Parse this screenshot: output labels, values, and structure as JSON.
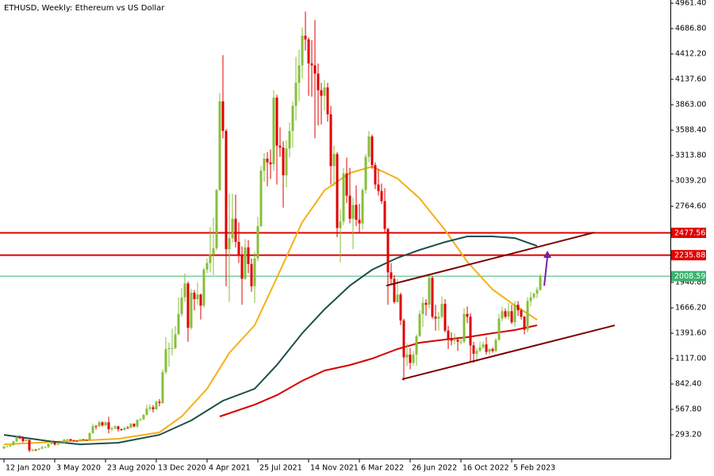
{
  "chart_data": {
    "type": "candlestick",
    "title": "ETHUSD, Weekly:  Ethereum vs US Dollar",
    "up_color": "#86bf3a",
    "down_color": "#e00000",
    "categories": [
      "12 Jan 2020",
      null,
      null,
      null,
      null,
      null,
      null,
      null,
      null,
      null,
      null,
      null,
      null,
      null,
      null,
      null,
      "3 May 2020",
      null,
      null,
      null,
      null,
      null,
      null,
      null,
      null,
      null,
      null,
      null,
      null,
      null,
      null,
      null,
      "23 Aug 2020",
      null,
      null,
      null,
      null,
      null,
      null,
      null,
      null,
      null,
      null,
      null,
      null,
      null,
      null,
      null,
      "13 Dec 2020",
      null,
      null,
      null,
      null,
      null,
      null,
      null,
      null,
      null,
      null,
      null,
      null,
      null,
      null,
      null,
      "4 Apr 2021",
      null,
      null,
      null,
      null,
      null,
      null,
      null,
      null,
      null,
      null,
      null,
      null,
      null,
      null,
      null,
      "25 Jul 2021",
      null,
      null,
      null,
      null,
      null,
      null,
      null,
      null,
      null,
      null,
      null,
      null,
      null,
      null,
      null,
      "14 Nov 2021",
      null,
      null,
      null,
      null,
      null,
      null,
      null,
      null,
      null,
      null,
      null,
      null,
      null,
      null,
      null,
      "6 Mar 2022",
      null,
      null,
      null,
      null,
      null,
      null,
      null,
      null,
      null,
      null,
      null,
      null,
      null,
      null,
      null,
      "26 Jun 2022",
      null,
      null,
      null,
      null,
      null,
      null,
      null,
      null,
      null,
      null,
      null,
      null,
      null,
      null,
      null,
      "16 Oct 2022",
      null,
      null,
      null,
      null,
      null,
      null,
      null,
      null,
      null,
      null,
      null,
      null,
      null,
      null,
      null,
      "5 Feb 2023",
      null,
      null,
      null,
      null,
      null,
      null,
      null,
      null,
      null
    ],
    "candles": [
      [
        145,
        175,
        140,
        165
      ],
      [
        165,
        178,
        160,
        168
      ],
      [
        168,
        190,
        162,
        180
      ],
      [
        180,
        230,
        175,
        223
      ],
      [
        223,
        275,
        215,
        265
      ],
      [
        265,
        288,
        245,
        260
      ],
      [
        260,
        275,
        210,
        225
      ],
      [
        225,
        252,
        220,
        238
      ],
      [
        238,
        240,
        105,
        125
      ],
      [
        125,
        142,
        108,
        132
      ],
      [
        132,
        140,
        118,
        131
      ],
      [
        131,
        150,
        125,
        143
      ],
      [
        143,
        175,
        140,
        158
      ],
      [
        158,
        172,
        150,
        158
      ],
      [
        158,
        197,
        152,
        194
      ],
      [
        194,
        228,
        185,
        214
      ],
      [
        214,
        215,
        175,
        188
      ],
      [
        188,
        213,
        180,
        200
      ],
      [
        200,
        218,
        195,
        207
      ],
      [
        207,
        248,
        200,
        243
      ],
      [
        243,
        252,
        225,
        245
      ],
      [
        245,
        250,
        225,
        232
      ],
      [
        232,
        240,
        220,
        228
      ],
      [
        228,
        232,
        215,
        226
      ],
      [
        226,
        246,
        222,
        243
      ],
      [
        243,
        248,
        235,
        241
      ],
      [
        241,
        242,
        228,
        232
      ],
      [
        232,
        320,
        230,
        311
      ],
      [
        311,
        415,
        305,
        386
      ],
      [
        386,
        400,
        350,
        385
      ],
      [
        385,
        445,
        375,
        428
      ],
      [
        428,
        438,
        380,
        395
      ],
      [
        395,
        440,
        385,
        428
      ],
      [
        428,
        488,
        310,
        353
      ],
      [
        353,
        380,
        330,
        364
      ],
      [
        364,
        395,
        350,
        384
      ],
      [
        384,
        390,
        330,
        353
      ],
      [
        353,
        362,
        335,
        346
      ],
      [
        346,
        375,
        335,
        370
      ],
      [
        370,
        390,
        360,
        368
      ],
      [
        368,
        420,
        365,
        413
      ],
      [
        413,
        415,
        375,
        383
      ],
      [
        383,
        460,
        370,
        454
      ],
      [
        454,
        475,
        440,
        460
      ],
      [
        460,
        515,
        455,
        509
      ],
      [
        509,
        620,
        500,
        575
      ],
      [
        575,
        625,
        550,
        590
      ],
      [
        590,
        615,
        535,
        570
      ],
      [
        570,
        665,
        560,
        650
      ],
      [
        650,
        680,
        600,
        637
      ],
      [
        637,
        1000,
        625,
        970
      ],
      [
        970,
        1350,
        950,
        1220
      ],
      [
        1220,
        1290,
        1030,
        1230
      ],
      [
        1230,
        1440,
        1150,
        1230
      ],
      [
        1230,
        1470,
        1220,
        1380
      ],
      [
        1380,
        1780,
        1370,
        1600
      ],
      [
        1600,
        1880,
        1570,
        1780
      ],
      [
        1780,
        2040,
        1730,
        1930
      ],
      [
        1930,
        1950,
        1300,
        1450
      ],
      [
        1450,
        1870,
        1430,
        1830
      ],
      [
        1830,
        1860,
        1640,
        1760
      ],
      [
        1760,
        1940,
        1700,
        1810
      ],
      [
        1810,
        1820,
        1540,
        1690
      ],
      [
        1690,
        2100,
        1670,
        2080
      ],
      [
        2080,
        2200,
        2040,
        2150
      ],
      [
        2150,
        2540,
        2050,
        2240
      ],
      [
        2240,
        2640,
        2020,
        2310
      ],
      [
        2310,
        2950,
        2290,
        2940
      ],
      [
        2940,
        3990,
        2930,
        3900
      ],
      [
        3900,
        4400,
        3500,
        3580
      ],
      [
        3580,
        3600,
        1900,
        2300
      ],
      [
        2300,
        2900,
        1730,
        2420
      ],
      [
        2420,
        2900,
        2370,
        2630
      ],
      [
        2630,
        2890,
        2320,
        2380
      ],
      [
        2380,
        2590,
        2150,
        2230
      ],
      [
        2230,
        2330,
        1700,
        1980
      ],
      [
        1980,
        2410,
        1970,
        2320
      ],
      [
        2320,
        2400,
        2040,
        2140
      ],
      [
        2140,
        2200,
        1840,
        1900
      ],
      [
        1900,
        2270,
        1720,
        2200
      ],
      [
        2200,
        2650,
        2170,
        2550
      ],
      [
        2550,
        3200,
        2540,
        3150
      ],
      [
        3150,
        3340,
        3030,
        3280
      ],
      [
        3280,
        3350,
        2980,
        3240
      ],
      [
        3240,
        3380,
        3060,
        3220
      ],
      [
        3220,
        4020,
        3150,
        3940
      ],
      [
        3940,
        3970,
        3000,
        3420
      ],
      [
        3420,
        3620,
        3300,
        3400
      ],
      [
        3400,
        3470,
        2750,
        3100
      ],
      [
        3100,
        3480,
        2970,
        3390
      ],
      [
        3390,
        3670,
        3290,
        3580
      ],
      [
        3580,
        3900,
        3400,
        3850
      ],
      [
        3850,
        4380,
        3690,
        4100
      ],
      [
        4100,
        4460,
        3900,
        4290
      ],
      [
        4290,
        4700,
        4150,
        4610
      ],
      [
        4610,
        4870,
        4450,
        4570
      ],
      [
        4570,
        4590,
        3960,
        4310
      ],
      [
        4310,
        4560,
        3950,
        4290
      ],
      [
        4290,
        4780,
        3500,
        4200
      ],
      [
        4200,
        4310,
        3640,
        4020
      ],
      [
        4020,
        4100,
        3650,
        3960
      ],
      [
        3960,
        4130,
        3800,
        4050
      ],
      [
        4050,
        4100,
        3680,
        3760
      ],
      [
        3760,
        3850,
        3000,
        3200
      ],
      [
        3200,
        3420,
        2980,
        3330
      ],
      [
        3330,
        3350,
        2430,
        2530
      ],
      [
        2530,
        2730,
        2160,
        2600
      ],
      [
        2600,
        3180,
        2560,
        3120
      ],
      [
        3120,
        3290,
        2800,
        2880
      ],
      [
        2880,
        3180,
        2580,
        2630
      ],
      [
        2630,
        2860,
        2300,
        2780
      ],
      [
        2780,
        2990,
        2550,
        2620
      ],
      [
        2620,
        2790,
        2480,
        2580
      ],
      [
        2580,
        2960,
        2510,
        2940
      ],
      [
        2940,
        3330,
        2900,
        3300
      ],
      [
        3300,
        3580,
        3240,
        3520
      ],
      [
        3520,
        3540,
        3170,
        3210
      ],
      [
        3210,
        3240,
        2950,
        3000
      ],
      [
        3000,
        3170,
        2880,
        2930
      ],
      [
        2930,
        3010,
        2790,
        2820
      ],
      [
        2820,
        2960,
        2480,
        2520
      ],
      [
        2520,
        2530,
        1700,
        2050
      ],
      [
        2050,
        2150,
        1910,
        1980
      ],
      [
        1980,
        2020,
        1710,
        1730
      ],
      [
        1730,
        1980,
        1720,
        1810
      ],
      [
        1810,
        1830,
        1480,
        1530
      ],
      [
        1530,
        1550,
        880,
        1130
      ],
      [
        1130,
        1280,
        1040,
        1160
      ],
      [
        1160,
        1230,
        1000,
        1070
      ],
      [
        1070,
        1200,
        1040,
        1160
      ],
      [
        1160,
        1380,
        1040,
        1360
      ],
      [
        1360,
        1640,
        1350,
        1600
      ],
      [
        1600,
        1780,
        1460,
        1720
      ],
      [
        1720,
        1760,
        1580,
        1700
      ],
      [
        1700,
        2030,
        1660,
        1990
      ],
      [
        1990,
        2010,
        1550,
        1570
      ],
      [
        1570,
        1700,
        1420,
        1550
      ],
      [
        1550,
        1620,
        1420,
        1570
      ],
      [
        1570,
        1790,
        1550,
        1710
      ],
      [
        1710,
        1760,
        1400,
        1420
      ],
      [
        1420,
        1470,
        1220,
        1330
      ],
      [
        1330,
        1400,
        1260,
        1310
      ],
      [
        1310,
        1390,
        1270,
        1320
      ],
      [
        1320,
        1340,
        1200,
        1300
      ],
      [
        1300,
        1340,
        1270,
        1300
      ],
      [
        1300,
        1660,
        1280,
        1600
      ],
      [
        1600,
        1680,
        1500,
        1570
      ],
      [
        1570,
        1610,
        1080,
        1260
      ],
      [
        1260,
        1300,
        1070,
        1170
      ],
      [
        1170,
        1230,
        1080,
        1200
      ],
      [
        1200,
        1300,
        1190,
        1240
      ],
      [
        1240,
        1300,
        1220,
        1270
      ],
      [
        1270,
        1350,
        1160,
        1190
      ],
      [
        1190,
        1230,
        1160,
        1220
      ],
      [
        1220,
        1240,
        1180,
        1200
      ],
      [
        1200,
        1340,
        1190,
        1320
      ],
      [
        1320,
        1600,
        1310,
        1550
      ],
      [
        1550,
        1680,
        1520,
        1630
      ],
      [
        1630,
        1660,
        1550,
        1570
      ],
      [
        1570,
        1720,
        1540,
        1630
      ],
      [
        1630,
        1700,
        1490,
        1510
      ],
      [
        1510,
        1740,
        1460,
        1700
      ],
      [
        1700,
        1740,
        1580,
        1640
      ],
      [
        1640,
        1660,
        1540,
        1570
      ],
      [
        1570,
        1580,
        1380,
        1430
      ],
      [
        1430,
        1780,
        1400,
        1740
      ],
      [
        1740,
        1840,
        1680,
        1780
      ],
      [
        1780,
        1830,
        1760,
        1820
      ],
      [
        1820,
        1890,
        1770,
        1860
      ],
      [
        1860,
        2030,
        1850,
        2008.59
      ]
    ],
    "series": [
      {
        "color": "#f5b014",
        "x": [
          0,
          36,
          49,
          56,
          64,
          71,
          79,
          86,
          94,
          101,
          109,
          116,
          124,
          131,
          139,
          146,
          154,
          161,
          168
        ],
        "values": [
          190,
          250,
          319,
          491,
          791,
          1177,
          1478,
          1992,
          2593,
          2936,
          3125,
          3194,
          3065,
          2850,
          2507,
          2164,
          1864,
          1692,
          1537
        ]
      },
      {
        "color": "#1d4f4a",
        "x": [
          0,
          14,
          24,
          36,
          49,
          59,
          69,
          79,
          86,
          94,
          101,
          109,
          116,
          124,
          131,
          139,
          146,
          154,
          161,
          168
        ],
        "values": [
          293,
          225,
          190,
          207,
          293,
          448,
          662,
          791,
          1048,
          1392,
          1649,
          1907,
          2078,
          2207,
          2293,
          2378,
          2439,
          2439,
          2421,
          2336
        ]
      },
      {
        "color": "#d40000",
        "x": [
          68,
          79,
          86,
          94,
          101,
          109,
          116,
          124,
          131,
          139,
          146,
          154,
          161,
          168
        ],
        "values": [
          491,
          619,
          722,
          877,
          988,
          1048,
          1117,
          1220,
          1289,
          1323,
          1349,
          1392,
          1426,
          1478
        ]
      }
    ],
    "levels": [
      {
        "value": 2477.56,
        "color": "#e00000"
      },
      {
        "value": 2235.88,
        "color": "#e00000"
      },
      {
        "value": 2008.59,
        "color": "#3cb371"
      }
    ],
    "trendlines": [
      {
        "color": "#7a0000",
        "x": [
          120.5,
          186
        ],
        "values": [
          1906,
          2481
        ]
      },
      {
        "color": "#7a0000",
        "x": [
          125.5,
          192.5
        ],
        "values": [
          894,
          1477
        ]
      }
    ],
    "arrow": {
      "color": "#7b1fa2",
      "x": [
        170.25,
        171.25
      ],
      "values": [
        1906,
        2284
      ]
    },
    "xlim": [
      -1.25,
      210
    ],
    "ylim": [
      36,
      4996
    ],
    "yticks": [
      {
        "value": 293.2,
        "label": "293.20"
      },
      {
        "value": 567.8,
        "label": "567.80"
      },
      {
        "value": 842.4,
        "label": "842.40"
      },
      {
        "value": 1117,
        "label": "1117.00"
      },
      {
        "value": 1391.6,
        "label": "1391.60"
      },
      {
        "value": 1666.2,
        "label": "1666.20"
      },
      {
        "value": 1940.8,
        "label": "1940.80"
      },
      {
        "value": 2764.6,
        "label": "2764.60"
      },
      {
        "value": 3039.2,
        "label": "3039.20"
      },
      {
        "value": 3313.8,
        "label": "3313.80"
      },
      {
        "value": 3588.4,
        "label": "3588.40"
      },
      {
        "value": 3863,
        "label": "3863.00"
      },
      {
        "value": 4137.6,
        "label": "4137.60"
      },
      {
        "value": 4412.2,
        "label": "4412.20"
      },
      {
        "value": 4686.8,
        "label": "4686.80"
      },
      {
        "value": 4961.4,
        "label": "4961.40"
      }
    ]
  }
}
